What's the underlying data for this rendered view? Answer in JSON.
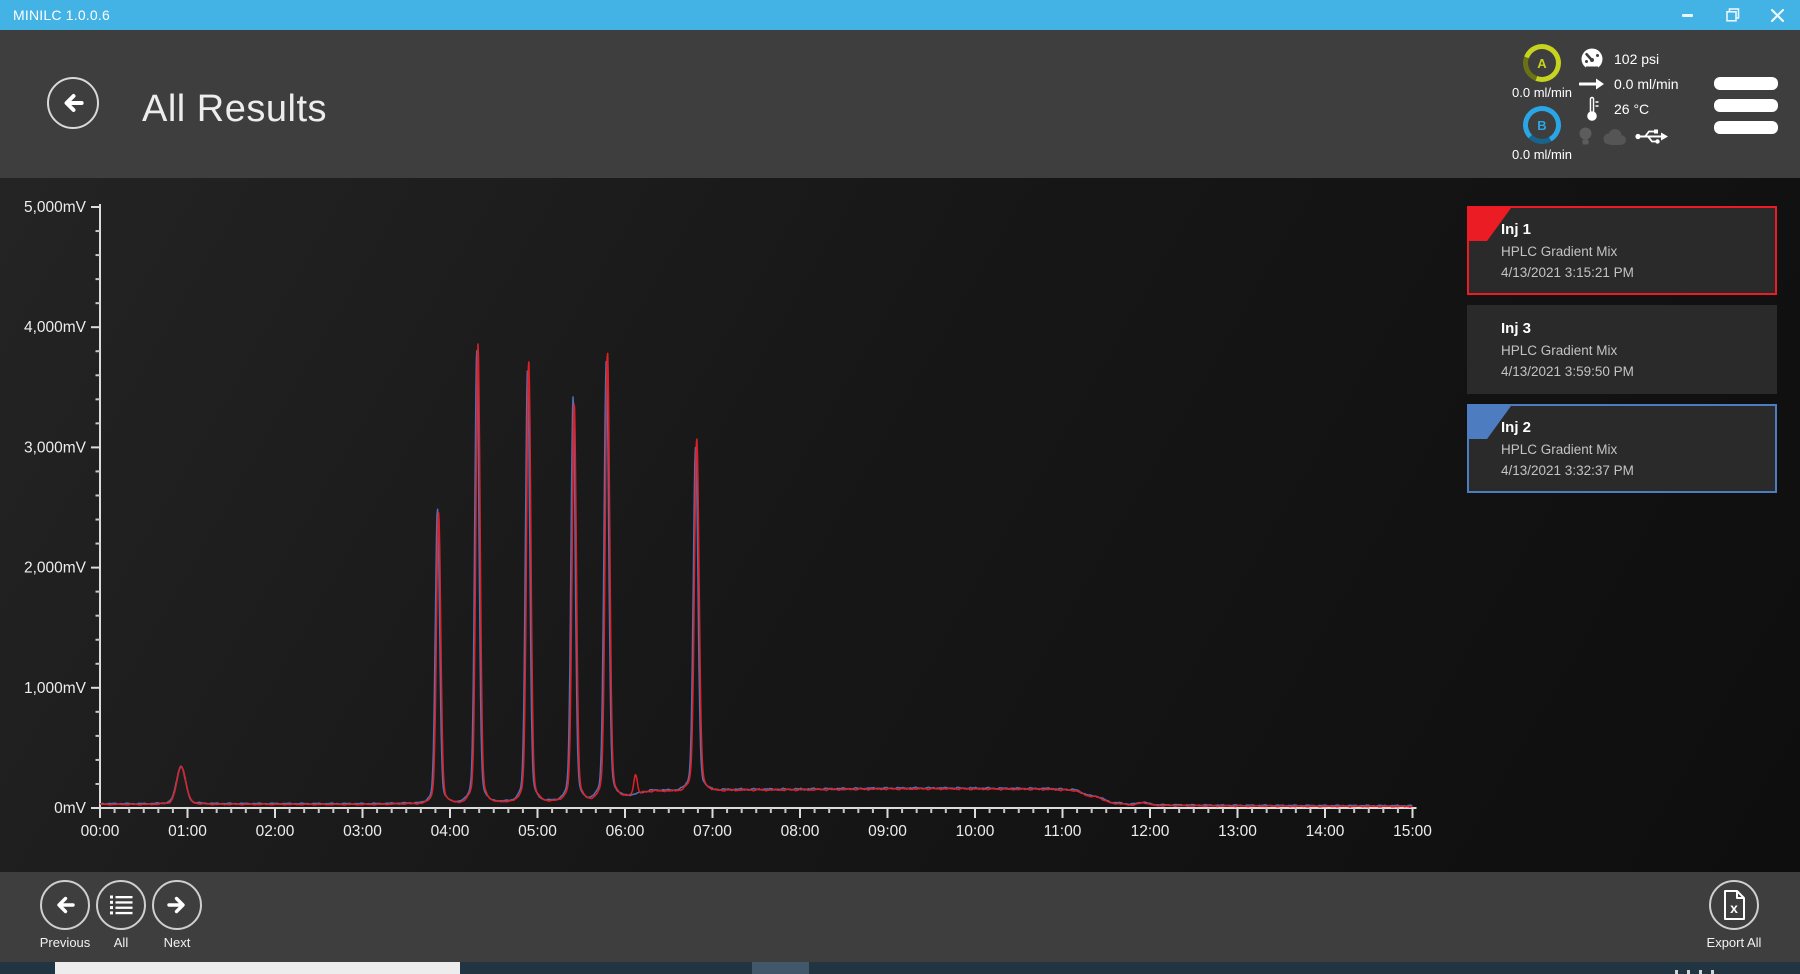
{
  "window": {
    "title": "MINILC 1.0.0.6"
  },
  "header": {
    "title": "All Results"
  },
  "status": {
    "pump_a": {
      "label": "A",
      "flow": "0.0 ml/min"
    },
    "pump_b": {
      "label": "B",
      "flow": "0.0 ml/min"
    },
    "pressure": "102 psi",
    "flow": "0.0 ml/min",
    "temperature": "26 °C"
  },
  "results": [
    {
      "name": "Inj 1",
      "method": "HPLC Gradient Mix",
      "timestamp": "4/13/2021 3:15:21 PM",
      "accent_color": "#ec1c24",
      "selected": true
    },
    {
      "name": "Inj 3",
      "method": "HPLC Gradient Mix",
      "timestamp": "4/13/2021 3:59:50 PM",
      "accent_color": null,
      "selected": false
    },
    {
      "name": "Inj 2",
      "method": "HPLC Gradient Mix",
      "timestamp": "4/13/2021 3:32:37 PM",
      "accent_color": "#4d7cc1",
      "selected": true
    }
  ],
  "toolbar": {
    "previous": "Previous",
    "all": "All",
    "next": "Next",
    "export_all": "Export All"
  },
  "colors": {
    "titlebar": "#43b2e4",
    "header": "#3e3e3e",
    "trace_inj1": "#df2127",
    "trace_inj2": "#5272b4",
    "card_selected_red": "#ec1c24",
    "card_selected_blue": "#4d7cc1",
    "pump_a_ring": "#c6d31f",
    "pump_b_ring": "#2aa6e6"
  },
  "chart_data": {
    "type": "line",
    "title": "",
    "xlim_hours": [
      0,
      15
    ],
    "ylim_mv": [
      0,
      5000
    ],
    "x_ticks": [
      "00:00",
      "01:00",
      "02:00",
      "03:00",
      "04:00",
      "05:00",
      "06:00",
      "07:00",
      "08:00",
      "09:00",
      "10:00",
      "11:00",
      "12:00",
      "13:00",
      "14:00",
      "15:00"
    ],
    "y_ticks": [
      "0mV",
      "1,000mV",
      "2,000mV",
      "3,000mV",
      "4,000mV",
      "5,000mV"
    ],
    "x_minor_divisions": 6,
    "y_minor_step_mv": 200,
    "grid": false,
    "legend": false,
    "baseline_mv_points": [
      [
        0,
        30
      ],
      [
        0.7,
        30
      ],
      [
        1.3,
        31
      ],
      [
        3.0,
        30
      ],
      [
        3.8,
        38
      ],
      [
        4.1,
        48
      ],
      [
        4.7,
        55
      ],
      [
        5.3,
        63
      ],
      [
        5.7,
        72
      ],
      [
        6.0,
        100
      ],
      [
        6.35,
        143
      ],
      [
        7.5,
        150
      ],
      [
        9.5,
        160
      ],
      [
        10.8,
        156
      ],
      [
        11.1,
        148
      ],
      [
        11.35,
        95
      ],
      [
        11.6,
        38
      ],
      [
        11.8,
        24
      ],
      [
        12.1,
        20
      ],
      [
        13.0,
        16
      ],
      [
        14.0,
        14
      ],
      [
        15.0,
        13
      ]
    ],
    "series": [
      {
        "name": "Inj 2",
        "color": "#5272b4",
        "baseline_offset_mv": 6,
        "noise_phase": 2.3,
        "peaks": [
          {
            "t_hours": 0.925,
            "height_mv": 295,
            "sigma_hours": 0.05
          },
          {
            "t_hours": 3.857,
            "height_mv": 2330,
            "sigma_hours": 0.024
          },
          {
            "t_hours": 4.307,
            "height_mv": 3570,
            "sigma_hours": 0.024
          },
          {
            "t_hours": 4.887,
            "height_mv": 3430,
            "sigma_hours": 0.024
          },
          {
            "t_hours": 5.407,
            "height_mv": 3195,
            "sigma_hours": 0.024
          },
          {
            "t_hours": 5.787,
            "height_mv": 3480,
            "sigma_hours": 0.026
          },
          {
            "t_hours": 6.807,
            "height_mv": 2730,
            "sigma_hours": 0.026
          },
          {
            "t_hours": 11.92,
            "height_mv": 18,
            "sigma_hours": 0.06
          }
        ]
      },
      {
        "name": "Inj 1",
        "color": "#df2127",
        "baseline_offset_mv": 0,
        "noise_phase": 0,
        "peaks": [
          {
            "t_hours": 0.93,
            "height_mv": 300,
            "sigma_hours": 0.05
          },
          {
            "t_hours": 3.87,
            "height_mv": 2300,
            "sigma_hours": 0.024
          },
          {
            "t_hours": 4.32,
            "height_mv": 3630,
            "sigma_hours": 0.024
          },
          {
            "t_hours": 4.9,
            "height_mv": 3490,
            "sigma_hours": 0.024
          },
          {
            "t_hours": 5.42,
            "height_mv": 3150,
            "sigma_hours": 0.024
          },
          {
            "t_hours": 5.8,
            "height_mv": 3540,
            "sigma_hours": 0.025
          },
          {
            "t_hours": 6.12,
            "height_mv": 160,
            "sigma_hours": 0.02
          },
          {
            "t_hours": 6.82,
            "height_mv": 2790,
            "sigma_hours": 0.026
          },
          {
            "t_hours": 11.93,
            "height_mv": 20,
            "sigma_hours": 0.06
          }
        ]
      }
    ]
  }
}
